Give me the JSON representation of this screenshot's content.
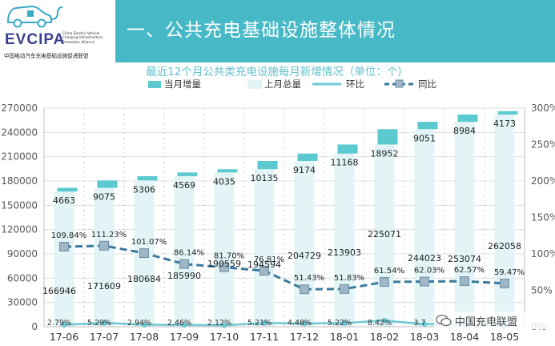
{
  "header": {
    "brand_name": "EVCIPA",
    "brand_subtitle": "China Electric Vehicle Charging Infrastructure Promotion Alliance",
    "brand_cn": "中国电动汽车充电基础设施促进联盟",
    "slide_title": "一、公共充电基础设施整体情况"
  },
  "watermark": {
    "text": "中国充电联盟"
  },
  "colors": {
    "banner": "#47b9c6",
    "monthly_bar": "#5bc9cf",
    "total_bar": "#e2f4f6",
    "mom_line": "#6cc8d4",
    "yoy_line": "#3b7a9c",
    "title": "#5fbfcc"
  },
  "chart_data": {
    "type": "bar",
    "title": "最近12个月公共类充电设施每月新增情况（单位：个）",
    "categories": [
      "17-06",
      "17-07",
      "17-08",
      "17-09",
      "17-10",
      "17-11",
      "17-12",
      "18-01",
      "18-02",
      "18-03",
      "18-04",
      "18-05"
    ],
    "series": [
      {
        "name": "当月增量",
        "type": "bar",
        "axis": "left",
        "values": [
          4663,
          9075,
          5306,
          4569,
          4035,
          10135,
          9174,
          11168,
          18952,
          9051,
          8984,
          4173
        ],
        "labels": [
          "4663",
          "9075",
          "5306",
          "4569",
          "4035",
          "10135",
          "9174",
          "11168",
          "18952",
          "9051",
          "8984",
          "4173"
        ]
      },
      {
        "name": "上月总量",
        "type": "bar",
        "axis": "left",
        "values": [
          166946,
          171609,
          180684,
          185990,
          190559,
          194594,
          204729,
          213903,
          225071,
          244023,
          253074,
          262058
        ],
        "labels": [
          "166946",
          "171609",
          "180684",
          "185990",
          "190559",
          "194594",
          "204729",
          "213903",
          "225071",
          "244023",
          "253074",
          "262058"
        ]
      },
      {
        "name": "环比",
        "type": "line",
        "axis": "right",
        "values": [
          2.79,
          5.29,
          2.94,
          2.46,
          2.12,
          5.21,
          4.48,
          5.22,
          8.42,
          3.71,
          3.55,
          1.59
        ],
        "labels": [
          "2.79%",
          "5.29%",
          "2.94%",
          "2.46%",
          "2.12%",
          "5.21%",
          "4.48%",
          "5.22%",
          "8.42%",
          "3.7",
          "",
          ""
        ]
      },
      {
        "name": "同比",
        "type": "line",
        "axis": "right",
        "values": [
          109.84,
          111.23,
          101.07,
          86.14,
          81.7,
          76.81,
          51.43,
          51.83,
          61.54,
          62.03,
          62.57,
          59.47
        ],
        "labels": [
          "109.84%",
          "111.23%",
          "101.07%",
          "86.14%",
          "81.70%",
          "76.81%",
          "51.43%",
          "51.83%",
          "61.54%",
          "62.03%",
          "62.57%",
          "59.47%"
        ]
      }
    ],
    "y_left": {
      "min": 0,
      "max": 270000,
      "ticks": [
        "0",
        "30000",
        "60000",
        "90000",
        "120000",
        "150000",
        "180000",
        "210000",
        "240000",
        "270000"
      ]
    },
    "y_right": {
      "min": 0,
      "max": 300,
      "ticks": [
        "0%",
        "50%",
        "100%",
        "150%",
        "200%",
        "250%",
        "300%"
      ]
    },
    "legend_position": "top"
  }
}
